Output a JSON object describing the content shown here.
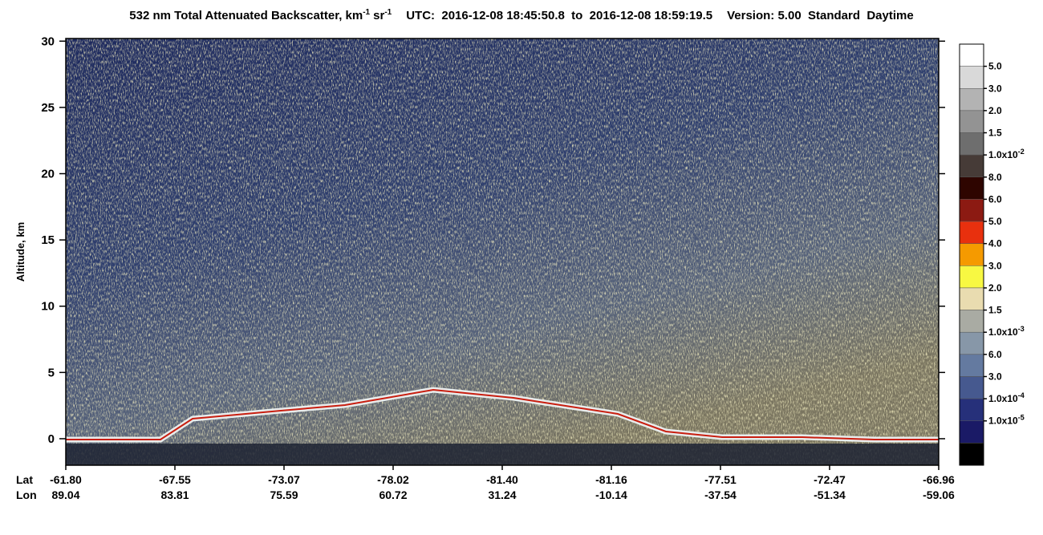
{
  "chart_data": {
    "type": "heatmap",
    "title": {
      "text": "532 nm Total Attenuated Backscatter, km",
      "exp1": "-1",
      "unit2": "sr",
      "exp2": "-1",
      "utc": "UTC:  2016-12-08 18:45:50.8  to  2016-12-08 18:59:19.5",
      "version": "Version: 5.00  Standard  Daytime"
    },
    "y_label": "Altitude, km",
    "ylim": [
      -2,
      30.2
    ],
    "yticks": [
      0,
      5,
      10,
      15,
      20,
      25,
      30
    ],
    "x_row_labels": [
      "Lat",
      "Lon"
    ],
    "lat": [
      "-61.80",
      "-67.55",
      "-73.07",
      "-78.02",
      "-81.40",
      "-81.16",
      "-77.51",
      "-72.47",
      "-66.96"
    ],
    "lon": [
      "89.04",
      "83.81",
      "75.59",
      "60.72",
      "31.24",
      "-10.14",
      "-37.54",
      "-51.34",
      "-59.06"
    ],
    "colorbar": {
      "colors": [
        "#ffffff",
        "#d9d9d9",
        "#b3b3b3",
        "#939393",
        "#6e6e6e",
        "#463b37",
        "#2e0500",
        "#8c1a12",
        "#e8300e",
        "#f59a00",
        "#f8f842",
        "#e9dcb0",
        "#a9aba3",
        "#8797a8",
        "#647aa0",
        "#46598f",
        "#26307a",
        "#1a1a66",
        "#000000"
      ],
      "labels": [
        "5.0",
        "3.0",
        "2.0",
        "1.5",
        {
          "mantissa": "1.0x10",
          "exp": "-2"
        },
        "8.0",
        "6.0",
        "5.0",
        "4.0",
        "3.0",
        "2.0",
        "1.5",
        {
          "mantissa": "1.0x10",
          "exp": "-3"
        },
        "6.0",
        "3.0",
        {
          "mantissa": "1.0x10",
          "exp": "-4"
        },
        {
          "mantissa": "1.0x10",
          "exp": "-5"
        }
      ]
    }
  }
}
